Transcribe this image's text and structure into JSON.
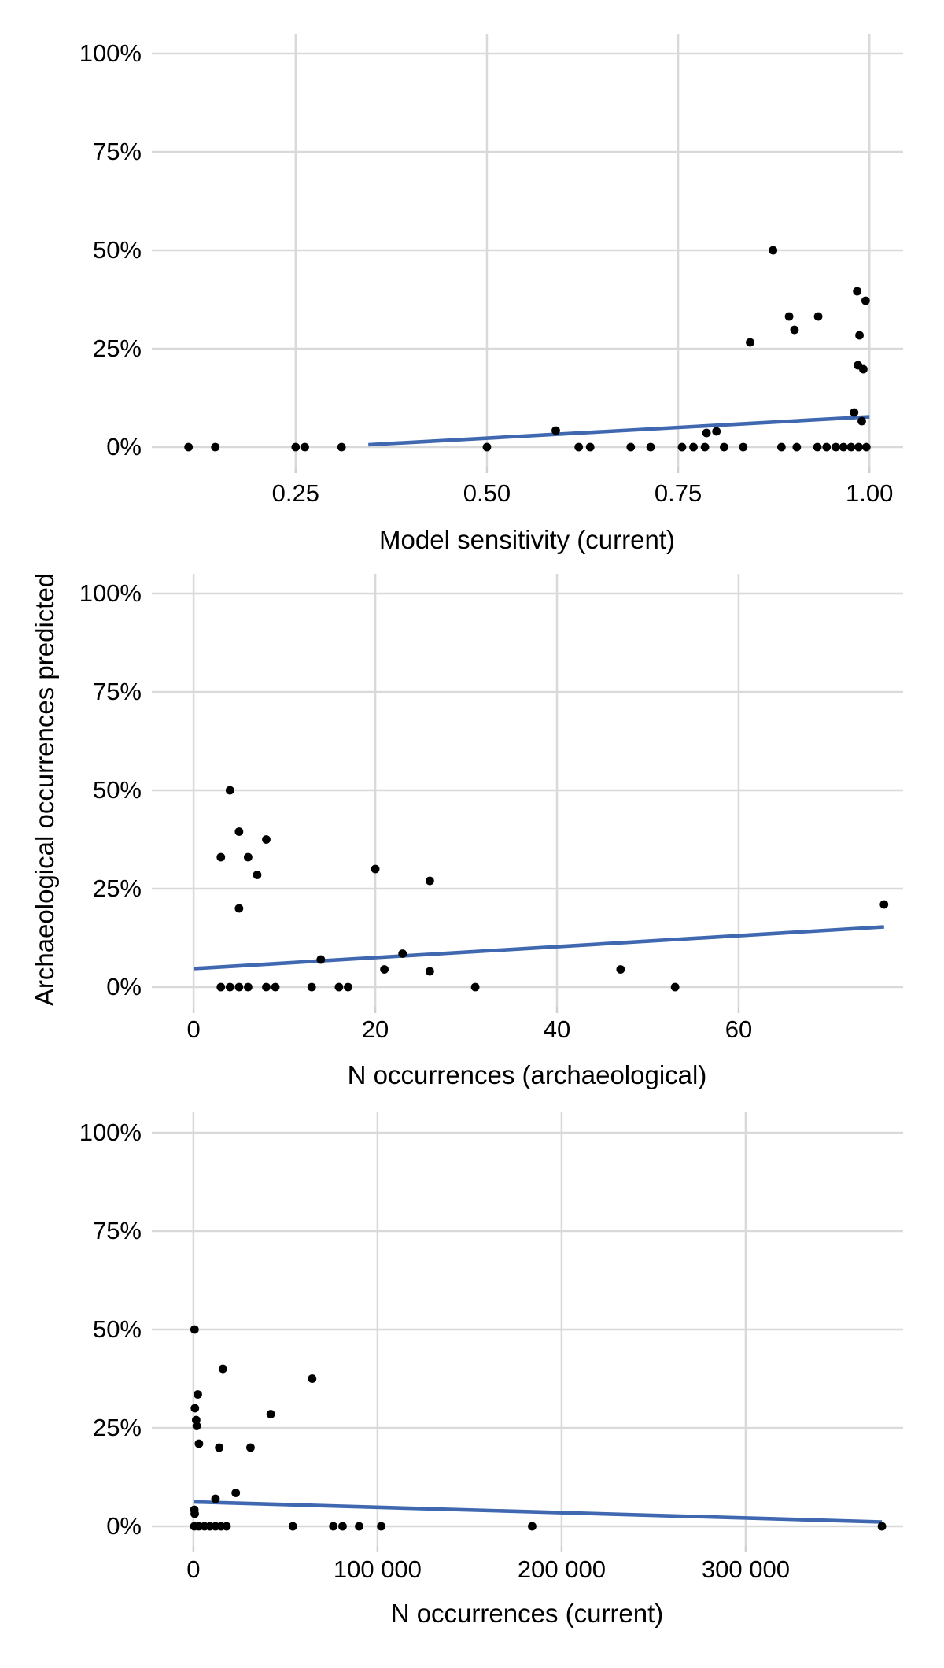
{
  "figure": {
    "y_axis_label": "Archaeological occurrences predicted",
    "colors": {
      "background": "#ffffff",
      "grid": "#d9d9d9",
      "tick_mark": "#d0d0d0",
      "point": "#000000",
      "trend_line": "#4068b0",
      "text": "#000000"
    }
  },
  "chart_data": [
    {
      "type": "scatter",
      "xlabel": "Model sensitivity (current)",
      "ylabel": "Archaeological occurrences predicted",
      "xlim": [
        0.062,
        1.044
      ],
      "ylim": [
        -5,
        105
      ],
      "grid": true,
      "xtick_values": [
        0.25,
        0.5,
        0.75,
        1.0
      ],
      "xtick_labels": [
        "0.25",
        "0.50",
        "0.75",
        "1.00"
      ],
      "ytick_values": [
        0,
        25,
        50,
        75,
        100
      ],
      "ytick_labels": [
        "0%",
        "25%",
        "50%",
        "75%",
        "100%"
      ],
      "points": [
        [
          0.11,
          0
        ],
        [
          0.145,
          0
        ],
        [
          0.25,
          0
        ],
        [
          0.262,
          0
        ],
        [
          0.31,
          0
        ],
        [
          0.5,
          0
        ],
        [
          0.62,
          0
        ],
        [
          0.635,
          0
        ],
        [
          0.688,
          0
        ],
        [
          0.714,
          0
        ],
        [
          0.755,
          0
        ],
        [
          0.77,
          0
        ],
        [
          0.785,
          0
        ],
        [
          0.81,
          0
        ],
        [
          0.835,
          0
        ],
        [
          0.885,
          0
        ],
        [
          0.905,
          0
        ],
        [
          0.932,
          0
        ],
        [
          0.944,
          0
        ],
        [
          0.956,
          0
        ],
        [
          0.966,
          0
        ],
        [
          0.976,
          0
        ],
        [
          0.986,
          0
        ],
        [
          0.996,
          0
        ],
        [
          0.59,
          4.2
        ],
        [
          0.787,
          3.6
        ],
        [
          0.8,
          4.0
        ],
        [
          0.844,
          26.6
        ],
        [
          0.874,
          50
        ],
        [
          0.895,
          33.2
        ],
        [
          0.902,
          29.8
        ],
        [
          0.933,
          33.2
        ],
        [
          0.984,
          39.6
        ],
        [
          0.995,
          37.2
        ],
        [
          0.987,
          28.4
        ],
        [
          0.985,
          20.8
        ],
        [
          0.992,
          19.8
        ],
        [
          0.98,
          8.8
        ],
        [
          0.99,
          6.6
        ]
      ],
      "trend_line": {
        "x1": 0.345,
        "y1": 0.6,
        "x2": 1.0,
        "y2": 7.7
      }
    },
    {
      "type": "scatter",
      "xlabel": "N occurrences (archaeological)",
      "ylabel": "Archaeological occurrences predicted",
      "xlim": [
        -4.6,
        78.1
      ],
      "ylim": [
        -5,
        105
      ],
      "grid": true,
      "xtick_values": [
        0,
        20,
        40,
        60
      ],
      "xtick_labels": [
        "0",
        "20",
        "40",
        "60"
      ],
      "ytick_values": [
        0,
        25,
        50,
        75,
        100
      ],
      "ytick_labels": [
        "0%",
        "25%",
        "50%",
        "75%",
        "100%"
      ],
      "points": [
        [
          3,
          0
        ],
        [
          4,
          0
        ],
        [
          5,
          0
        ],
        [
          6,
          0
        ],
        [
          8,
          0
        ],
        [
          9,
          0
        ],
        [
          13,
          0
        ],
        [
          16,
          0
        ],
        [
          17,
          0
        ],
        [
          31,
          0
        ],
        [
          53,
          0
        ],
        [
          4,
          50
        ],
        [
          5,
          39.5
        ],
        [
          8,
          37.5
        ],
        [
          3,
          33
        ],
        [
          6,
          33
        ],
        [
          7,
          28.5
        ],
        [
          20,
          30
        ],
        [
          26,
          27
        ],
        [
          5,
          20
        ],
        [
          76,
          21
        ],
        [
          23,
          8.5
        ],
        [
          14,
          7
        ],
        [
          21,
          4.5
        ],
        [
          26,
          4
        ],
        [
          47,
          4.5
        ]
      ],
      "trend_line": {
        "x1": 0,
        "y1": 4.7,
        "x2": 76,
        "y2": 15.3
      }
    },
    {
      "type": "scatter",
      "xlabel": "N occurrences (current)",
      "ylabel": "Archaeological occurrences predicted",
      "xlim": [
        -22600,
        385500
      ],
      "ylim": [
        -5,
        105
      ],
      "grid": true,
      "xtick_values": [
        0,
        100000,
        200000,
        300000
      ],
      "xtick_labels": [
        "0",
        "100 000",
        "200 000",
        "300 000"
      ],
      "ytick_values": [
        0,
        25,
        50,
        75,
        100
      ],
      "ytick_labels": [
        "0%",
        "25%",
        "50%",
        "75%",
        "100%"
      ],
      "points": [
        [
          500,
          0
        ],
        [
          3000,
          0
        ],
        [
          6000,
          0
        ],
        [
          9000,
          0
        ],
        [
          12000,
          0
        ],
        [
          15000,
          0
        ],
        [
          18000,
          0
        ],
        [
          54000,
          0
        ],
        [
          76000,
          0
        ],
        [
          81000,
          0
        ],
        [
          90000,
          0
        ],
        [
          102000,
          0
        ],
        [
          184000,
          0
        ],
        [
          374000,
          0
        ],
        [
          600,
          50
        ],
        [
          16000,
          40
        ],
        [
          64500,
          37.5
        ],
        [
          2400,
          33.5
        ],
        [
          800,
          30
        ],
        [
          42000,
          28.5
        ],
        [
          1500,
          27
        ],
        [
          1800,
          25.5
        ],
        [
          3000,
          21
        ],
        [
          14000,
          20
        ],
        [
          31000,
          20
        ],
        [
          23000,
          8.5
        ],
        [
          12000,
          7
        ],
        [
          500,
          4.2
        ],
        [
          700,
          3.2
        ]
      ],
      "trend_line": {
        "x1": 0,
        "y1": 6.2,
        "x2": 374000,
        "y2": 1.1
      }
    }
  ]
}
